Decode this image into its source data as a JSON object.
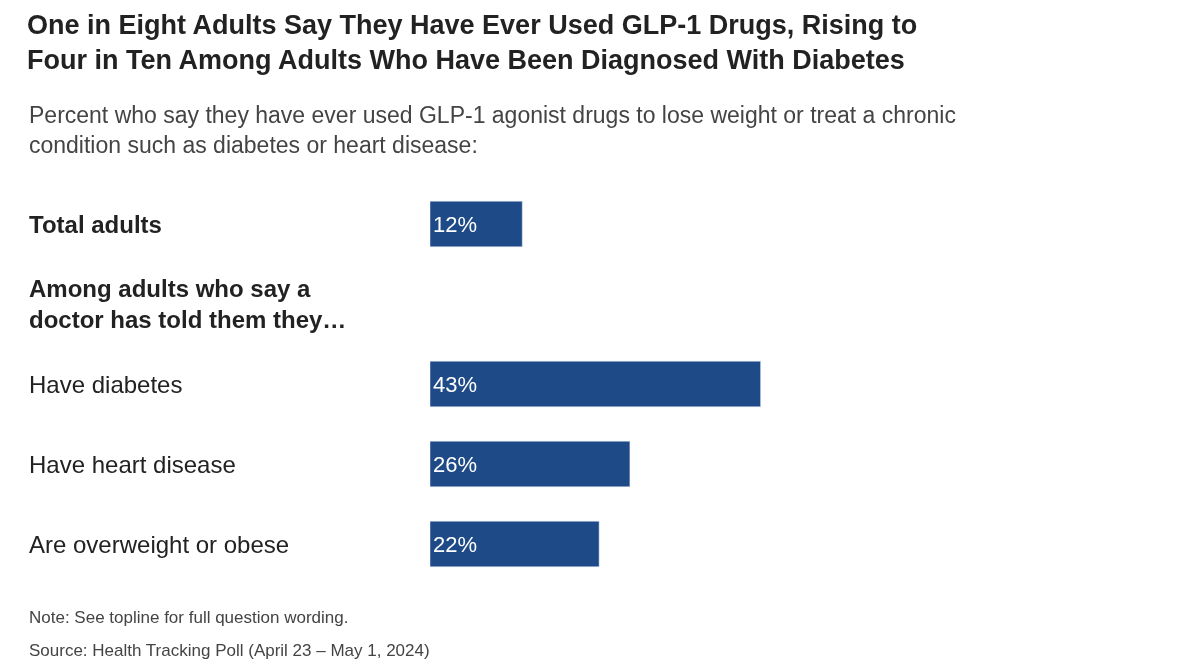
{
  "chart_data": {
    "type": "bar",
    "orientation": "horizontal",
    "title": "One in Eight Adults Say They Have Ever Used GLP-1 Drugs, Rising to\nFour in Ten Among Adults Who Have Been Diagnosed With Diabetes",
    "subtitle": "Percent who say they have ever used GLP-1 agonist drugs to lose weight or treat a chronic\ncondition such as diabetes or heart disease:",
    "categories": [
      "Total adults",
      "Among adults who say a\ndoctor has told them they…",
      "Have diabetes",
      "Have heart disease",
      "Are overweight or obese"
    ],
    "values": [
      12,
      null,
      43,
      26,
      22
    ],
    "value_labels": [
      "12%",
      null,
      "43%",
      "26%",
      "22%"
    ],
    "color": "#1e4b87",
    "tick_labels": false,
    "legend": false,
    "annotations": [
      "Note: See topline for full question wording.",
      "Source: Health Tracking Poll (April 23 – May 1, 2024)"
    ]
  }
}
